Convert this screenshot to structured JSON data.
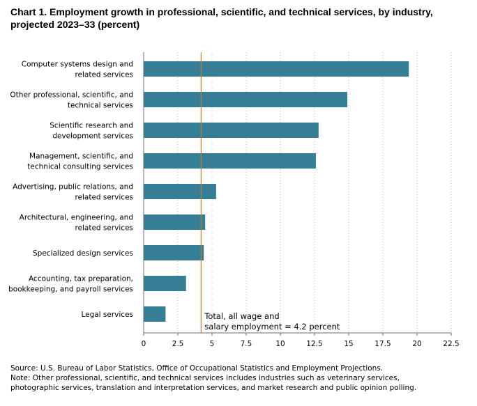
{
  "title_line1": "Chart 1. Employment growth in professional, scientific, and technical services, by industry,",
  "title_line2": "projected 2023–33 (percent)",
  "source": "Source: U.S. Bureau of Labor Statistics, Office of Occupational Statistics and Employment Projections.",
  "note_line1": "Note: Other professional, scientific, and technical services includes industries such as veterinary services,",
  "note_line2": "photographic services, translation and interpretation services, and market research and public opinion polling.",
  "chart_data": {
    "type": "bar",
    "orientation": "horizontal",
    "categories": [
      [
        "Computer systems design and",
        "related services"
      ],
      [
        "Other professional, scientific, and",
        "technical services"
      ],
      [
        "Scientific research and",
        "development services"
      ],
      [
        "Management, scientific, and",
        "technical consulting services"
      ],
      [
        "Advertising, public relations, and",
        "related services"
      ],
      [
        "Architectural, engineering, and",
        "related services"
      ],
      [
        "Specialized design services"
      ],
      [
        "Accounting, tax preparation,",
        "bookkeeping, and payroll services"
      ],
      [
        "Legal services"
      ]
    ],
    "values": [
      19.4,
      14.9,
      12.8,
      12.6,
      5.3,
      4.5,
      4.4,
      3.1,
      1.6
    ],
    "xlim": [
      0,
      22.5
    ],
    "xticks": [
      "0",
      "2.5",
      "5",
      "7.5",
      "10",
      "12.5",
      "15",
      "17.5",
      "20",
      "22.5"
    ],
    "grid": "vertical dotted",
    "bar_color": "#367e95",
    "reference": {
      "value": 4.2,
      "color": "#c07a30",
      "label_line1": "Total, all wage and",
      "label_line2": "salary employment = 4.2 percent"
    }
  }
}
